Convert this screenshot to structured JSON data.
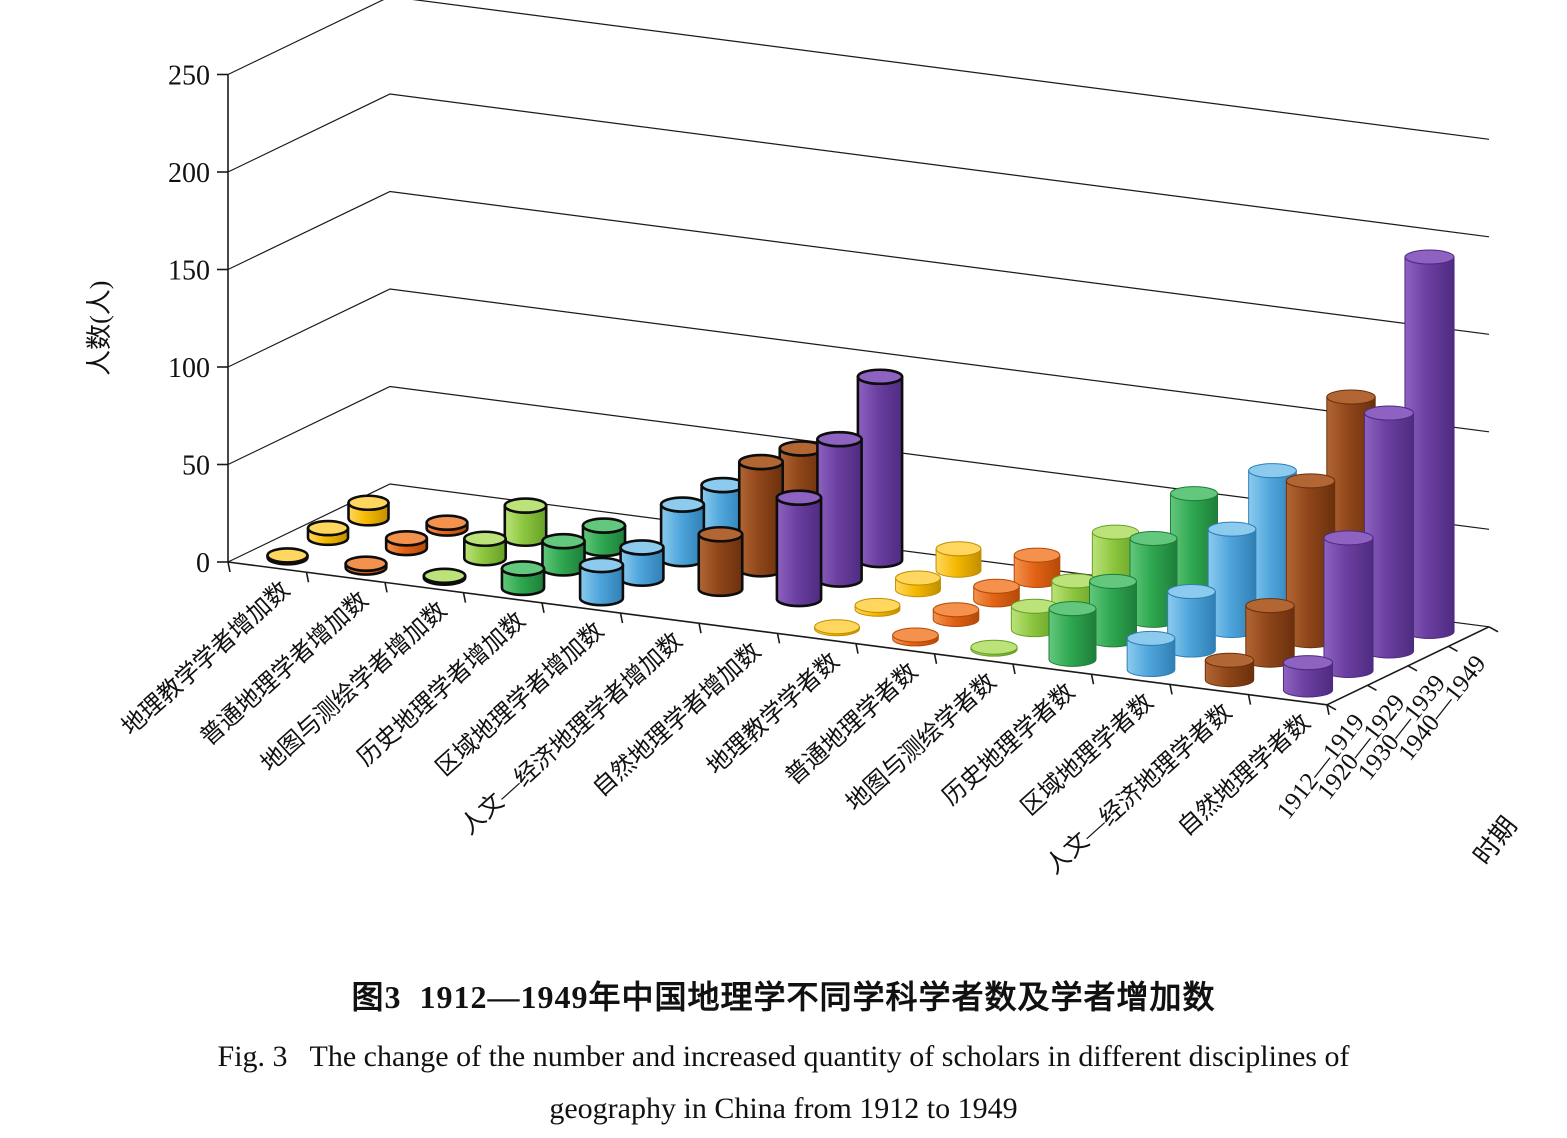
{
  "figure": {
    "caption_zh": "图3  1912—1949年中国地理学不同学科学者数及学者增加数",
    "caption_en_1": "Fig. 3   The change of the number and increased quantity of scholars in different disciplines of",
    "caption_en_2": "geography in China from 1912 to 1949"
  },
  "chart_data": {
    "type": "bar",
    "style": "3d-cylinder",
    "title": "",
    "ylabel": "人数(人)",
    "ylim": [
      0,
      250
    ],
    "yticks": [
      0,
      50,
      100,
      150,
      200,
      250
    ],
    "grid": true,
    "legend": false,
    "depth_axis_label": "时期",
    "periods": [
      "1912—1919",
      "1920—1929",
      "1930—1939",
      "1940—1949"
    ],
    "categories": [
      "地理教学学者增加数",
      "普通地理学者增加数",
      "地图与测绘学者增加数",
      "历史地理学者增加数",
      "区域地理学者增加数",
      "人文—经济地理学者增加数",
      "自然地理学者增加数",
      "地理教学学者数",
      "普通地理学者数",
      "地图与测绘学者数",
      "历史地理学者数",
      "区域地理学者数",
      "人文—经济地理学者数",
      "自然地理学者数"
    ],
    "series": [
      {
        "name": "地理教学学者增加数",
        "color": "yellow",
        "outlined": true,
        "values": [
          1,
          5,
          8,
          0
        ]
      },
      {
        "name": "普通地理学者增加数",
        "color": "orange",
        "outlined": true,
        "values": [
          2,
          5,
          3,
          0
        ]
      },
      {
        "name": "地图与测绘学者增加数",
        "color": "yellowgreen",
        "outlined": true,
        "values": [
          1,
          10,
          17,
          0
        ]
      },
      {
        "name": "历史地理学者增加数",
        "color": "green",
        "outlined": true,
        "values": [
          10,
          14,
          12,
          0
        ]
      },
      {
        "name": "区域地理学者增加数",
        "color": "blue",
        "outlined": true,
        "values": [
          17,
          16,
          28,
          28
        ]
      },
      {
        "name": "人文—经济地理学者增加数",
        "color": "brown",
        "outlined": true,
        "values": [
          0,
          28,
          55,
          52
        ]
      },
      {
        "name": "自然地理学者增加数",
        "color": "purple",
        "outlined": true,
        "values": [
          0,
          52,
          72,
          94
        ]
      },
      {
        "name": "地理教学学者数",
        "color": "yellow",
        "outlined": false,
        "values": [
          1,
          2,
          6,
          11
        ]
      },
      {
        "name": "普通地理学者数",
        "color": "orange",
        "outlined": false,
        "values": [
          2,
          5,
          7,
          13
        ]
      },
      {
        "name": "地图与测绘学者数",
        "color": "yellowgreen",
        "outlined": false,
        "values": [
          1,
          12,
          15,
          30
        ]
      },
      {
        "name": "历史地理学者数",
        "color": "green",
        "outlined": false,
        "values": [
          26,
          30,
          42,
          55
        ]
      },
      {
        "name": "区域地理学者数",
        "color": "blue",
        "outlined": false,
        "values": [
          16,
          30,
          52,
          72
        ]
      },
      {
        "name": "人文—经济地理学者数",
        "color": "brown",
        "outlined": false,
        "values": [
          10,
          28,
          82,
          115
        ]
      },
      {
        "name": "自然地理学者数",
        "color": "purple",
        "outlined": false,
        "values": [
          14,
          68,
          122,
          192
        ]
      }
    ],
    "colors": {
      "yellow": {
        "light": "#FFD75E",
        "main": "#F5B800",
        "dark": "#C18F00"
      },
      "orange": {
        "light": "#F4924D",
        "main": "#E26215",
        "dark": "#B54A08"
      },
      "yellowgreen": {
        "light": "#BCE37A",
        "main": "#8CC63F",
        "dark": "#689F27"
      },
      "green": {
        "light": "#63C87D",
        "main": "#2FA850",
        "dark": "#1E7E3A"
      },
      "blue": {
        "light": "#8CCBEE",
        "main": "#4FA6DC",
        "dark": "#2F7FB4"
      },
      "brown": {
        "light": "#B26634",
        "main": "#8F4619",
        "dark": "#6B300D"
      },
      "purple": {
        "light": "#8E62C0",
        "main": "#6B3FA0",
        "dark": "#4E2B80"
      }
    },
    "axis_color": "#1a1a1a"
  }
}
